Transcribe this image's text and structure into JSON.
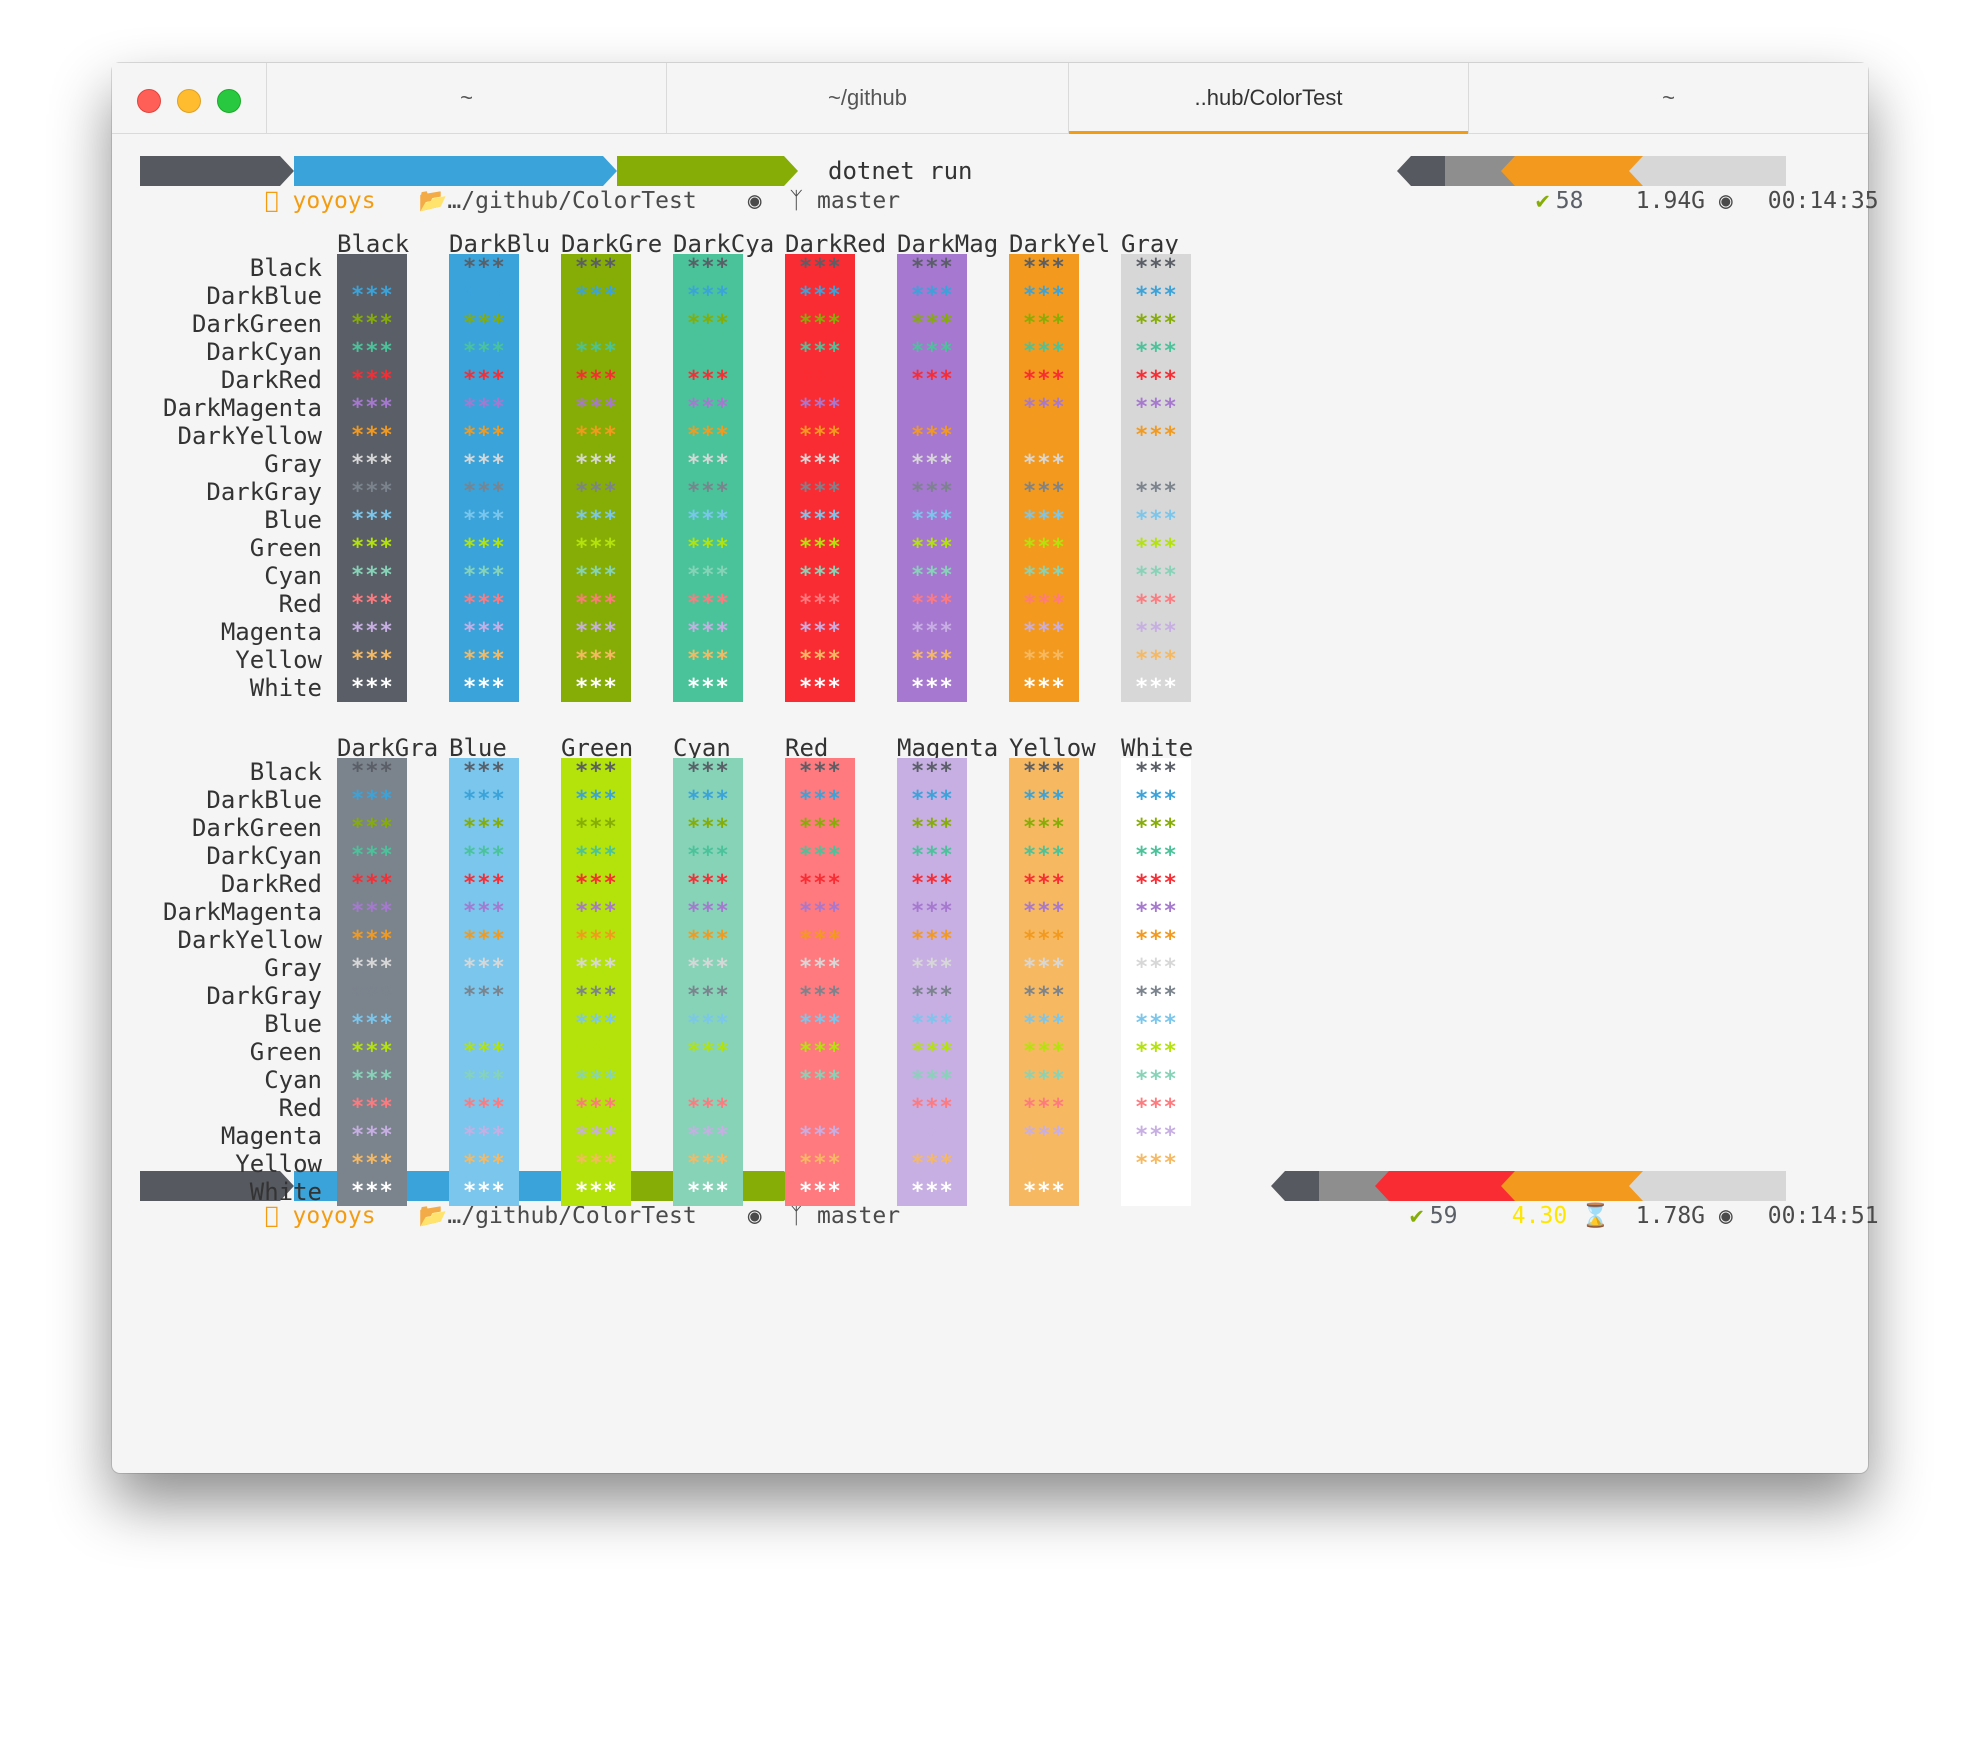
{
  "window": {
    "tabs": [
      {
        "label": "~",
        "active": false
      },
      {
        "label": "~/github",
        "active": false
      },
      {
        "label": "..hub/ColorTest",
        "active": true
      },
      {
        "label": "~",
        "active": false
      }
    ]
  },
  "prompt1": {
    "user": "yoyoys",
    "path": "…/github/ColorTest",
    "branch": "master",
    "command": "dotnet run",
    "status_icon": "check-icon",
    "history": "58",
    "memory": "1.94G",
    "time": "00:14:35"
  },
  "prompt2": {
    "user": "yoyoys",
    "path": "…/github/ColorTest",
    "branch": "master",
    "status_icon": "check-icon",
    "history": "59",
    "load": "4.30",
    "memory": "1.78G",
    "time": "00:14:51"
  },
  "colors": {
    "Black": "#5a5e66",
    "DarkBlue": "#3aa3da",
    "DarkGreen": "#86ad06",
    "DarkCyan": "#4ac39a",
    "DarkRed": "#fa2c33",
    "DarkMagenta": "#a678d0",
    "DarkYellow": "#f39a1e",
    "Gray": "#d7d7d7",
    "DarkGray": "#7b838d",
    "Blue": "#7ac6ec",
    "Green": "#b3e30a",
    "Cyan": "#86d3b8",
    "Red": "#ff7a7e",
    "Magenta": "#c7aee3",
    "Yellow": "#f6b962",
    "White": "#ffffff"
  },
  "row_labels": [
    "Black",
    "DarkBlue",
    "DarkGreen",
    "DarkCyan",
    "DarkRed",
    "DarkMagenta",
    "DarkYellow",
    "Gray",
    "DarkGray",
    "Blue",
    "Green",
    "Cyan",
    "Red",
    "Magenta",
    "Yellow",
    "White"
  ],
  "cell_text": "***",
  "table1": {
    "headers": [
      "Black",
      "DarkBlu",
      "DarkGre",
      "DarkCya",
      "DarkRed",
      "DarkMag",
      "DarkYel",
      "Gray"
    ],
    "backgrounds": [
      "Black",
      "DarkBlue",
      "DarkGreen",
      "DarkCyan",
      "DarkRed",
      "DarkMagenta",
      "DarkYellow",
      "Gray"
    ]
  },
  "table2": {
    "headers": [
      "DarkGra",
      "Blue",
      "Green",
      "Cyan",
      "Red",
      "Magenta",
      "Yellow",
      "White"
    ],
    "backgrounds": [
      "DarkGray",
      "Blue",
      "Green",
      "Cyan",
      "Red",
      "Magenta",
      "Yellow",
      "White"
    ]
  }
}
